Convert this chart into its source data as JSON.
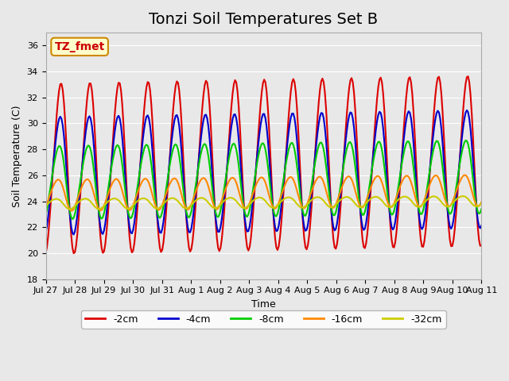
{
  "title": "Tonzi Soil Temperatures Set B",
  "xlabel": "Time",
  "ylabel": "Soil Temperature (C)",
  "annotation": "TZ_fmet",
  "ylim": [
    18,
    37
  ],
  "yticks": [
    18,
    20,
    22,
    24,
    26,
    28,
    30,
    32,
    34,
    36
  ],
  "bg_color": "#e8e8e8",
  "plot_bg_color": "#e8e8e8",
  "line_colors": [
    "#dd0000",
    "#0000cc",
    "#00cc00",
    "#ff8800",
    "#cccc00"
  ],
  "line_labels": [
    "-2cm",
    "-4cm",
    "-8cm",
    "-16cm",
    "-32cm"
  ],
  "line_width": 1.5,
  "annotation_bg": "#ffffcc",
  "annotation_border": "#cc8800",
  "annotation_text_color": "#cc0000",
  "num_days": 15,
  "n_points": 360,
  "series_params": [
    {
      "mean": 26.5,
      "amp": 6.5,
      "phase": 0.0,
      "trend": 0.04
    },
    {
      "mean": 26.0,
      "amp": 4.5,
      "phase": 0.15,
      "trend": 0.035
    },
    {
      "mean": 25.5,
      "amp": 2.8,
      "phase": 0.35,
      "trend": 0.03
    },
    {
      "mean": 24.5,
      "amp": 1.2,
      "phase": 0.6,
      "trend": 0.025
    },
    {
      "mean": 23.8,
      "amp": 0.4,
      "phase": 1.0,
      "trend": 0.015
    }
  ],
  "xtick_labels": [
    "Jul 27",
    "Jul 28",
    "Jul 29",
    "Jul 30",
    "Jul 31",
    "Aug 1",
    "Aug 2",
    "Aug 3",
    "Aug 4",
    "Aug 5",
    "Aug 6",
    "Aug 7",
    "Aug 8",
    "Aug 9",
    "Aug 10",
    "Aug 11"
  ],
  "title_fontsize": 14,
  "axis_label_fontsize": 9,
  "tick_fontsize": 8,
  "legend_fontsize": 9
}
